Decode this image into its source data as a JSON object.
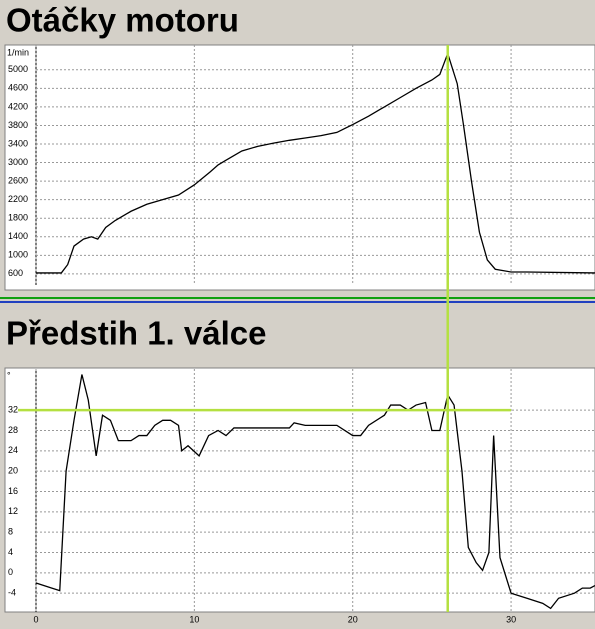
{
  "chart_data": [
    {
      "type": "line",
      "title": "Otáčky motoru",
      "unit": "1/min",
      "x": [
        0,
        1.6,
        2,
        2.4,
        3,
        3.5,
        3.9,
        4.4,
        5,
        6,
        7,
        8,
        9,
        10,
        11,
        11.5,
        12,
        13,
        14,
        15,
        16,
        17,
        18,
        19,
        20,
        21,
        22,
        23,
        24,
        25,
        25.5,
        26,
        26.6,
        27,
        27.5,
        28,
        28.5,
        29,
        30,
        31,
        35.3
      ],
      "series": [
        {
          "name": "Otáčky motoru",
          "color": "#000000",
          "values": [
            620,
            620,
            800,
            1200,
            1350,
            1400,
            1350,
            1600,
            1750,
            1950,
            2100,
            2200,
            2300,
            2520,
            2800,
            2950,
            3050,
            3250,
            3350,
            3420,
            3480,
            3530,
            3580,
            3650,
            3820,
            4000,
            4200,
            4400,
            4600,
            4780,
            4900,
            5350,
            4700,
            3800,
            2600,
            1500,
            900,
            700,
            640,
            640,
            620
          ]
        }
      ],
      "xlim": [
        0,
        35.3
      ],
      "ylim": [
        360,
        5470
      ],
      "yticks": [
        600,
        1000,
        1400,
        1800,
        2200,
        2600,
        3000,
        3400,
        3800,
        4200,
        4600,
        5000
      ],
      "grid": true
    },
    {
      "type": "line",
      "title": "Předstih 1. válce",
      "unit": "°",
      "x": [
        0,
        1,
        1.5,
        1.9,
        2.4,
        2.9,
        3.3,
        3.8,
        4.2,
        4.7,
        5.2,
        6,
        6.5,
        7,
        7.5,
        8,
        8.5,
        9,
        9.2,
        9.6,
        10.3,
        10.9,
        11.5,
        12,
        12.5,
        14,
        16,
        16.3,
        17,
        19,
        20,
        20.5,
        21,
        22,
        22.4,
        23,
        23.5,
        24,
        24.6,
        25,
        25.5,
        26,
        26.4,
        26.9,
        27.3,
        27.8,
        28.2,
        28.6,
        28.9,
        29.3,
        30,
        31,
        32,
        32.5,
        33,
        34,
        34.5,
        35,
        35.3
      ],
      "series": [
        {
          "name": "Předstih 1. válce",
          "color": "#000000",
          "values": [
            -2,
            -3,
            -3.5,
            20,
            30,
            39,
            34,
            23,
            31,
            30,
            26,
            26,
            27,
            27,
            29,
            30,
            30,
            29,
            24,
            25,
            23,
            27,
            28,
            27,
            28.5,
            28.5,
            28.5,
            29.5,
            29,
            29,
            27,
            27,
            29,
            31,
            33,
            33,
            32,
            33,
            33.5,
            28,
            28,
            35,
            33,
            20,
            5,
            2,
            0.5,
            4,
            27,
            3,
            -4,
            -5,
            -6,
            -7,
            -5,
            -4,
            -3,
            -3,
            -2.5
          ]
        }
      ],
      "xlim": [
        0,
        35.3
      ],
      "ylim": [
        -7.7,
        39.5
      ],
      "xticks": [
        0,
        10,
        20,
        30
      ],
      "yticks": [
        -4,
        0,
        4,
        8,
        12,
        16,
        20,
        24,
        28,
        32
      ],
      "grid": true,
      "cursor": {
        "x": 26,
        "y": 32,
        "color": "#b4e040"
      }
    }
  ]
}
